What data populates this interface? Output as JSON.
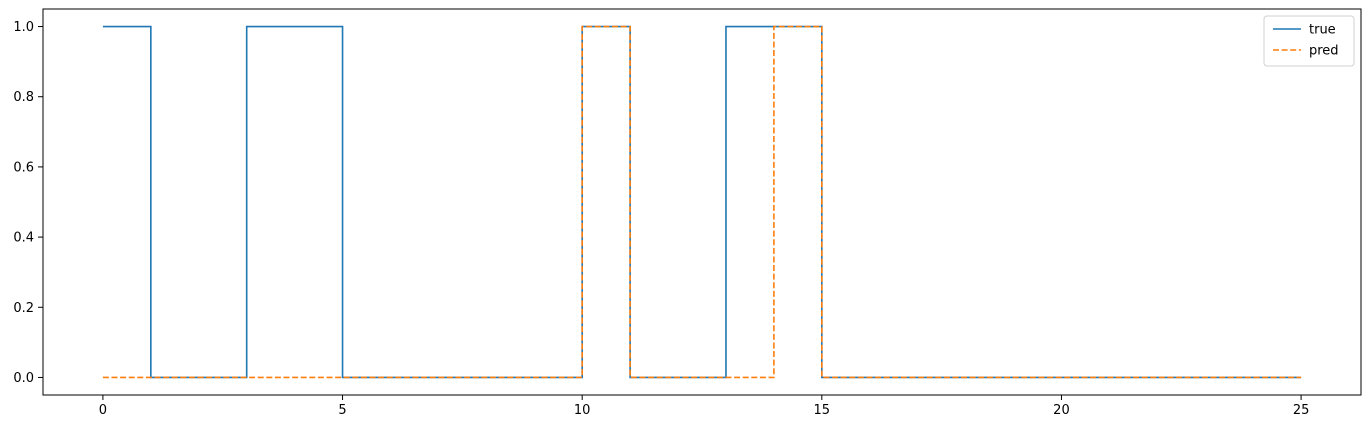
{
  "chart_data": {
    "type": "line",
    "step": "post",
    "xlim": [
      -1.25,
      26.25
    ],
    "ylim": [
      -0.05,
      1.05
    ],
    "xticks": [
      0,
      5,
      10,
      15,
      20,
      25
    ],
    "xtick_labels": [
      "0",
      "5",
      "10",
      "15",
      "20",
      "25"
    ],
    "yticks": [
      0.0,
      0.2,
      0.4,
      0.6,
      0.8,
      1.0
    ],
    "ytick_labels": [
      "0.0",
      "0.2",
      "0.4",
      "0.6",
      "0.8",
      "1.0"
    ],
    "grid": false,
    "legend_position": "top-right",
    "x": [
      0,
      1,
      2,
      3,
      4,
      5,
      6,
      7,
      8,
      9,
      10,
      11,
      12,
      13,
      14,
      15,
      16,
      17,
      18,
      19,
      20,
      21,
      22,
      23,
      24,
      25
    ],
    "series": [
      {
        "name": "true",
        "color": "#1f77b4",
        "linestyle": "solid",
        "values": [
          1,
          0,
          0,
          1,
          1,
          0,
          0,
          0,
          0,
          0,
          1,
          0,
          0,
          1,
          1,
          0,
          0,
          0,
          0,
          0,
          0,
          0,
          0,
          0,
          0,
          0
        ]
      },
      {
        "name": "pred",
        "color": "#ff7f0e",
        "linestyle": "dashed",
        "values": [
          0,
          0,
          0,
          0,
          0,
          0,
          0,
          0,
          0,
          0,
          1,
          0,
          0,
          0,
          1,
          0,
          0,
          0,
          0,
          0,
          0,
          0,
          0,
          0,
          0,
          0
        ]
      }
    ]
  }
}
